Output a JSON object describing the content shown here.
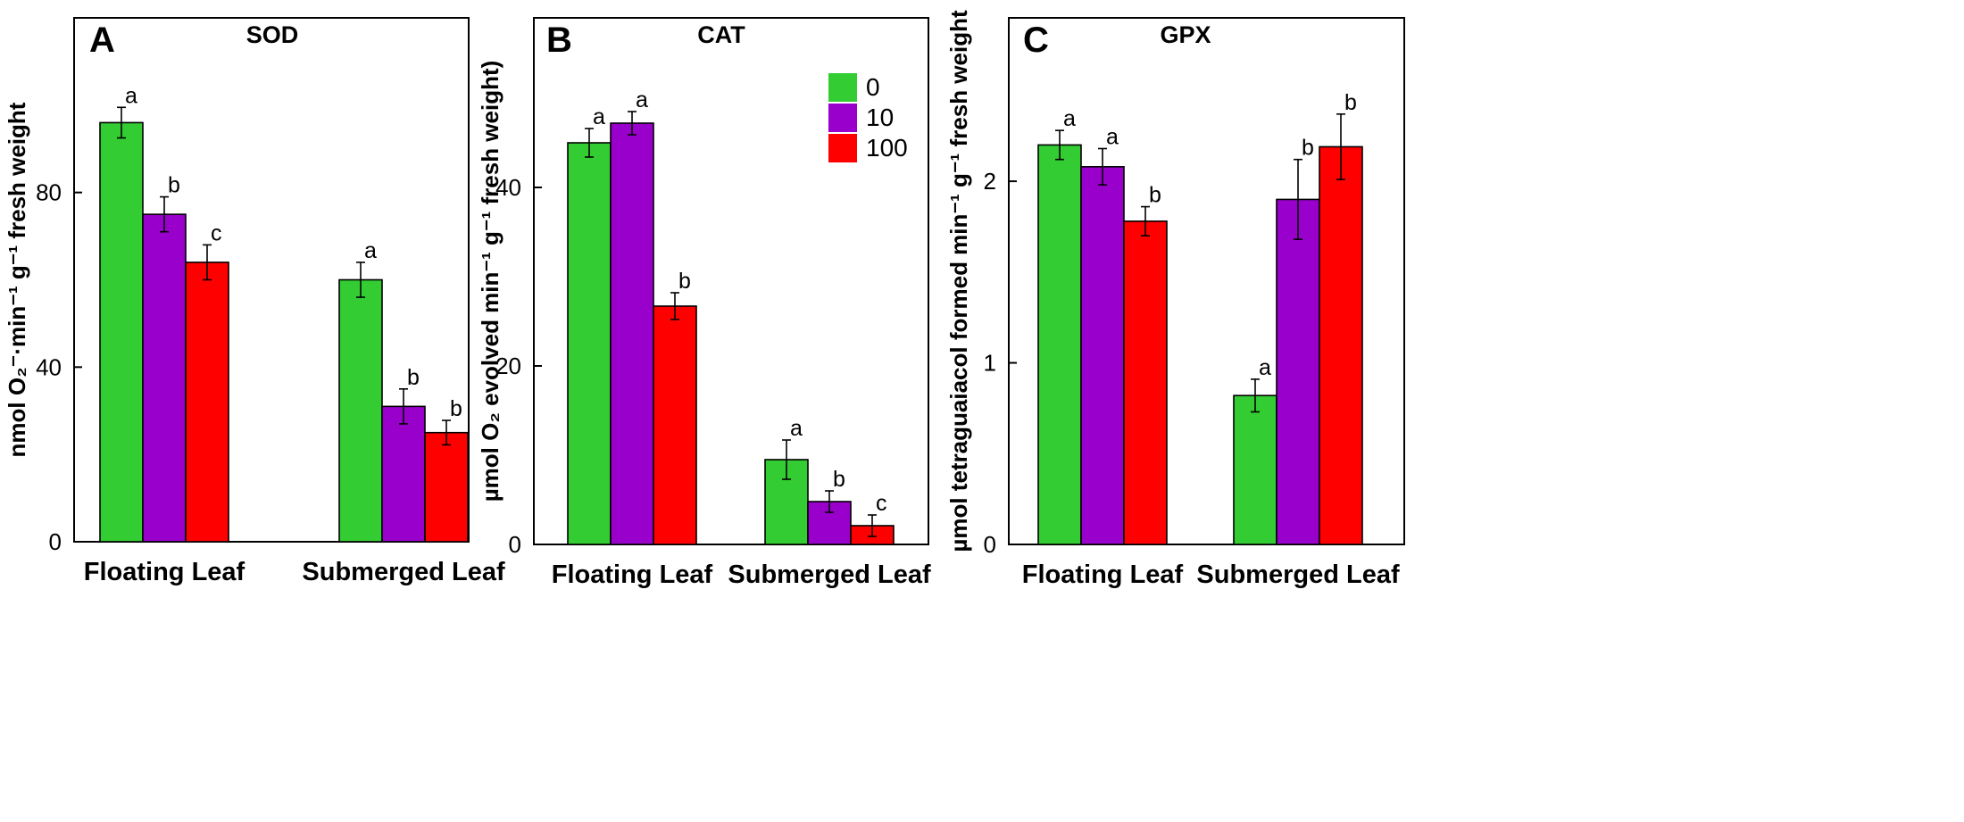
{
  "chart_data": [
    {
      "type": "bar",
      "panel": "A",
      "title": "SOD",
      "ylabel": "nmol O₂⁻·min⁻¹ g⁻¹ fresh weight",
      "xlabel": "",
      "categories": [
        "Floating Leaf",
        "Submerged Leaf"
      ],
      "ylim": [
        0,
        120
      ],
      "yticks": [
        0,
        40,
        80
      ],
      "series": [
        {
          "name": "0",
          "values": [
            96,
            60
          ],
          "errors": [
            3.5,
            4
          ],
          "labels": [
            "a",
            "a"
          ]
        },
        {
          "name": "10",
          "values": [
            75,
            31
          ],
          "errors": [
            4,
            4
          ],
          "labels": [
            "b",
            "b"
          ]
        },
        {
          "name": "100",
          "values": [
            64,
            25
          ],
          "errors": [
            4,
            2.8
          ],
          "labels": [
            "c",
            "b"
          ]
        }
      ]
    },
    {
      "type": "bar",
      "panel": "B",
      "title": "CAT",
      "ylabel": "µmol O₂ evolved min⁻¹ g⁻¹ fresh weight)",
      "xlabel": "",
      "categories": [
        "Floating Leaf",
        "Submerged Leaf"
      ],
      "ylim": [
        0,
        59
      ],
      "yticks": [
        0,
        20,
        40
      ],
      "series": [
        {
          "name": "0",
          "values": [
            45,
            9.5
          ],
          "errors": [
            1.6,
            2.2
          ],
          "labels": [
            "a",
            "a"
          ]
        },
        {
          "name": "10",
          "values": [
            47.2,
            4.8
          ],
          "errors": [
            1.3,
            1.2
          ],
          "labels": [
            "a",
            "b"
          ]
        },
        {
          "name": "100",
          "values": [
            26.7,
            2.1
          ],
          "errors": [
            1.5,
            1.2
          ],
          "labels": [
            "b",
            "c"
          ]
        }
      ],
      "legend": {
        "position": "top-right",
        "entries": [
          "0",
          "10",
          "100"
        ]
      }
    },
    {
      "type": "bar",
      "panel": "C",
      "title": "GPX",
      "ylabel": "µmol tetraguaiacol formed min⁻¹ g⁻¹ fresh weight",
      "xlabel": "",
      "categories": [
        "Floating Leaf",
        "Submerged Leaf"
      ],
      "ylim": [
        0,
        2.9
      ],
      "yticks": [
        0,
        1,
        2
      ],
      "series": [
        {
          "name": "0",
          "values": [
            2.2,
            0.82
          ],
          "errors": [
            0.08,
            0.09
          ],
          "labels": [
            "a",
            "a"
          ]
        },
        {
          "name": "10",
          "values": [
            2.08,
            1.9
          ],
          "errors": [
            0.1,
            0.22
          ],
          "labels": [
            "a",
            "b"
          ]
        },
        {
          "name": "100",
          "values": [
            1.78,
            2.19
          ],
          "errors": [
            0.08,
            0.18
          ],
          "labels": [
            "b",
            "b"
          ]
        }
      ]
    }
  ],
  "colors": {
    "0": "#33cc33",
    "10": "#9900cc",
    "100": "#ff0000"
  }
}
